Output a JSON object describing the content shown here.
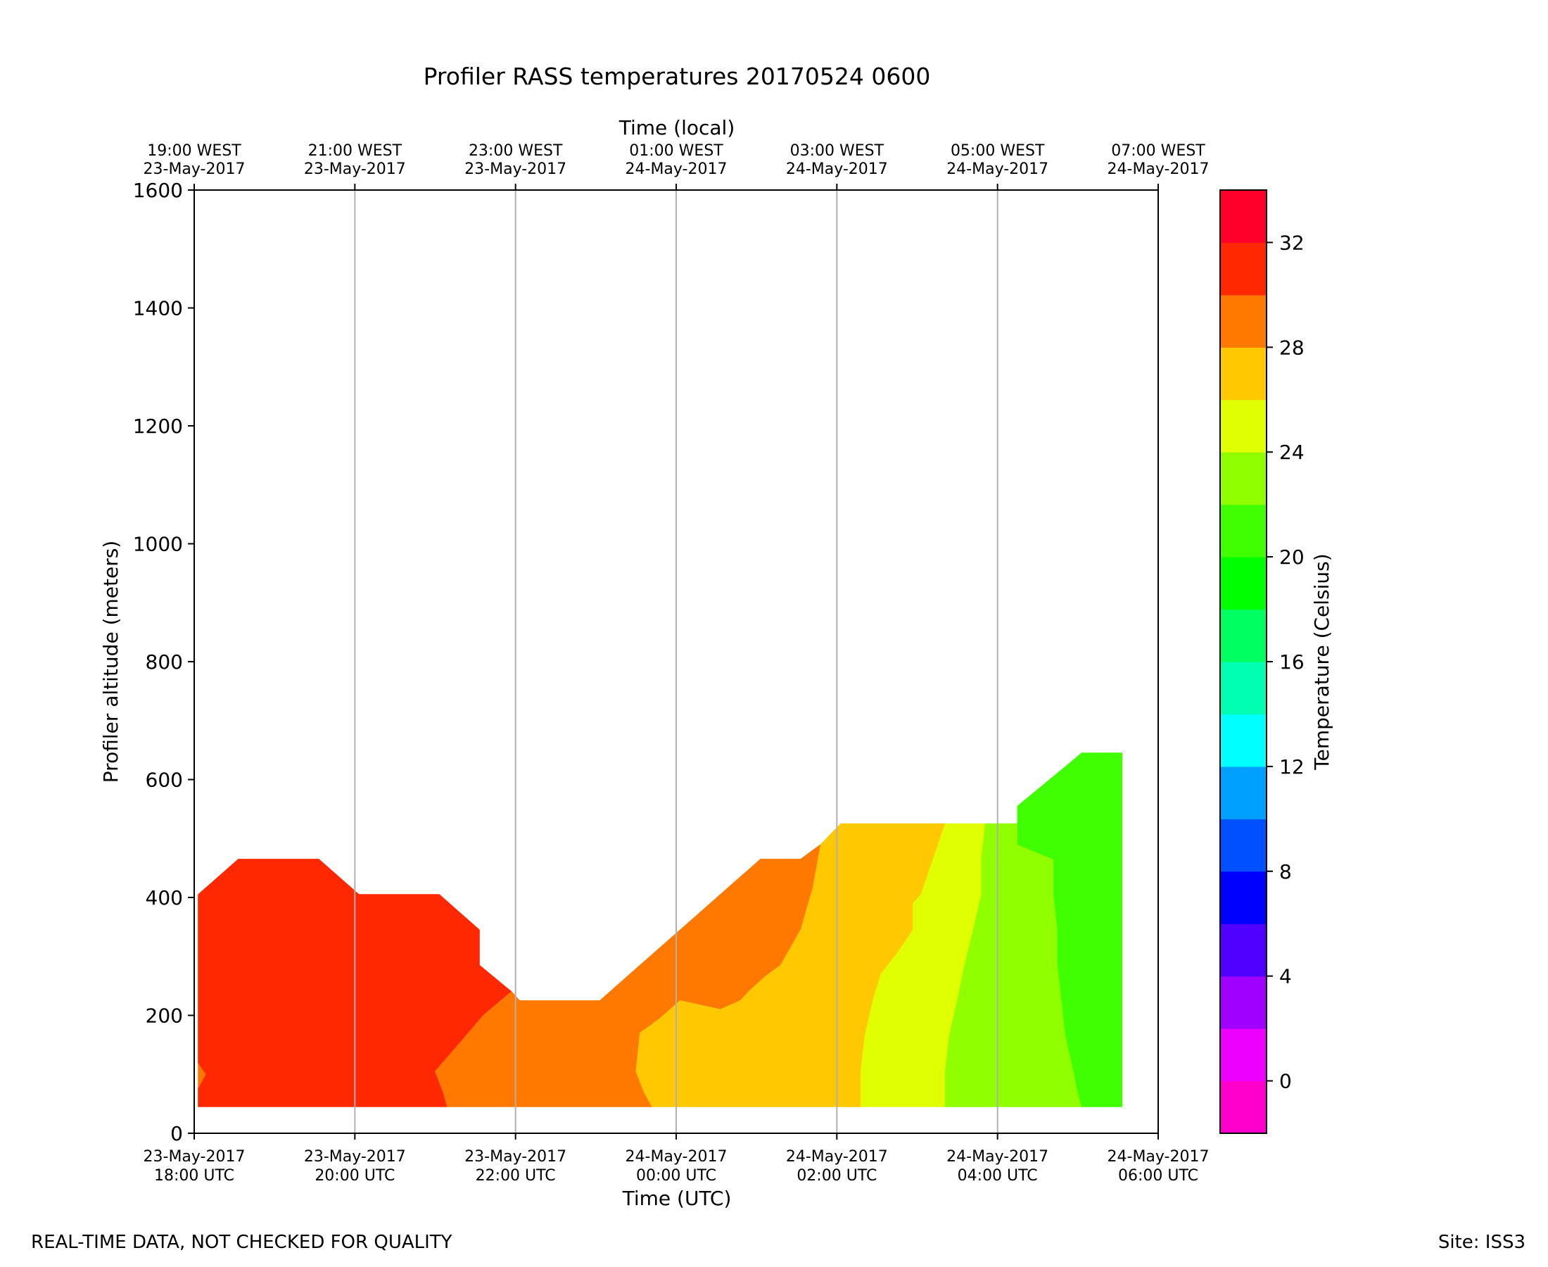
{
  "chart_data": {
    "type": "heatmap",
    "subtype": "filled-contour",
    "title": "Profiler RASS temperatures 20170524 0600",
    "xlabel": "Time (UTC)",
    "xlabel_top": "Time (local)",
    "ylabel": "Profiler altitude (meters)",
    "colorbar_label": "Temperature (Celsius)",
    "xlim_hours_utc_from_18z": [
      0,
      12
    ],
    "ylim": [
      0,
      1600
    ],
    "yticks": [
      0,
      200,
      400,
      600,
      800,
      1000,
      1200,
      1400,
      1600
    ],
    "xticks_hours": [
      0,
      2,
      4,
      6,
      8,
      10,
      12
    ],
    "xticks_bottom": [
      {
        "date": "23-May-2017",
        "time": "18:00 UTC"
      },
      {
        "date": "23-May-2017",
        "time": "20:00 UTC"
      },
      {
        "date": "23-May-2017",
        "time": "22:00 UTC"
      },
      {
        "date": "24-May-2017",
        "time": "00:00 UTC"
      },
      {
        "date": "24-May-2017",
        "time": "02:00 UTC"
      },
      {
        "date": "24-May-2017",
        "time": "04:00 UTC"
      },
      {
        "date": "24-May-2017",
        "time": "06:00 UTC"
      }
    ],
    "xticks_top": [
      {
        "time": "19:00 WEST",
        "date": "23-May-2017"
      },
      {
        "time": "21:00 WEST",
        "date": "23-May-2017"
      },
      {
        "time": "23:00 WEST",
        "date": "23-May-2017"
      },
      {
        "time": "01:00 WEST",
        "date": "24-May-2017"
      },
      {
        "time": "03:00 WEST",
        "date": "24-May-2017"
      },
      {
        "time": "05:00 WEST",
        "date": "24-May-2017"
      },
      {
        "time": "07:00 WEST",
        "date": "24-May-2017"
      }
    ],
    "grid": "vertical lines at x ticks",
    "colorbar": {
      "range": [
        -2,
        34
      ],
      "step": 2,
      "ticks": [
        0,
        4,
        8,
        12,
        16,
        20,
        24,
        28,
        32
      ],
      "colors": [
        "#ff00cc",
        "#ee00ff",
        "#a000ff",
        "#5000ff",
        "#0000ff",
        "#0050ff",
        "#00a0ff",
        "#00ffff",
        "#00ffb0",
        "#00ff60",
        "#00ff00",
        "#40ff00",
        "#90ff00",
        "#e0ff00",
        "#ffc800",
        "#ff7800",
        "#ff2800",
        "#ff0028"
      ]
    },
    "regions": [
      {
        "temp_band": [
          28,
          30
        ],
        "color": "#ff7800",
        "outline": [
          [
            0.05,
            120
          ],
          [
            0.15,
            100
          ],
          [
            0.05,
            75
          ]
        ]
      },
      {
        "temp_band": [
          30,
          32
        ],
        "color": "#ff2800",
        "outline": [
          [
            0.05,
            45
          ],
          [
            0.05,
            75
          ],
          [
            0.15,
            100
          ],
          [
            0.05,
            120
          ],
          [
            0.05,
            405
          ],
          [
            0.55,
            465
          ],
          [
            1.55,
            465
          ],
          [
            2.05,
            405
          ],
          [
            3.05,
            405
          ],
          [
            3.55,
            345
          ],
          [
            3.55,
            285
          ],
          [
            3.95,
            240
          ],
          [
            3.6,
            200
          ],
          [
            3.35,
            160
          ],
          [
            3.0,
            105
          ],
          [
            3.1,
            70
          ],
          [
            3.15,
            45
          ]
        ]
      },
      {
        "temp_band": [
          28,
          30
        ],
        "color": "#ff7800",
        "outline": [
          [
            3.15,
            45
          ],
          [
            3.1,
            70
          ],
          [
            3.0,
            105
          ],
          [
            3.35,
            160
          ],
          [
            3.6,
            200
          ],
          [
            3.95,
            240
          ],
          [
            4.05,
            225
          ],
          [
            5.05,
            225
          ],
          [
            5.55,
            285
          ],
          [
            6.05,
            345
          ],
          [
            6.55,
            405
          ],
          [
            7.05,
            465
          ],
          [
            7.55,
            465
          ],
          [
            7.8,
            490
          ],
          [
            7.7,
            415
          ],
          [
            7.55,
            345
          ],
          [
            7.3,
            285
          ],
          [
            7.1,
            265
          ],
          [
            6.9,
            240
          ],
          [
            6.8,
            225
          ],
          [
            6.55,
            210
          ],
          [
            6.05,
            225
          ],
          [
            5.8,
            195
          ],
          [
            5.55,
            170
          ],
          [
            5.5,
            105
          ],
          [
            5.6,
            70
          ],
          [
            5.7,
            45
          ]
        ]
      },
      {
        "temp_band": [
          26,
          28
        ],
        "color": "#ffc800",
        "outline": [
          [
            5.7,
            45
          ],
          [
            5.6,
            70
          ],
          [
            5.5,
            105
          ],
          [
            5.55,
            170
          ],
          [
            5.8,
            195
          ],
          [
            6.05,
            225
          ],
          [
            6.55,
            210
          ],
          [
            6.8,
            225
          ],
          [
            6.9,
            240
          ],
          [
            7.1,
            265
          ],
          [
            7.3,
            285
          ],
          [
            7.55,
            345
          ],
          [
            7.7,
            415
          ],
          [
            7.8,
            490
          ],
          [
            8.05,
            525
          ],
          [
            9.35,
            525
          ],
          [
            9.2,
            465
          ],
          [
            9.05,
            405
          ],
          [
            8.95,
            390
          ],
          [
            8.95,
            345
          ],
          [
            8.75,
            305
          ],
          [
            8.55,
            270
          ],
          [
            8.45,
            225
          ],
          [
            8.35,
            165
          ],
          [
            8.3,
            105
          ],
          [
            8.3,
            45
          ]
        ]
      },
      {
        "temp_band": [
          24,
          26
        ],
        "color": "#e0ff00",
        "outline": [
          [
            8.3,
            45
          ],
          [
            8.3,
            105
          ],
          [
            8.35,
            165
          ],
          [
            8.45,
            225
          ],
          [
            8.55,
            270
          ],
          [
            8.75,
            305
          ],
          [
            8.95,
            345
          ],
          [
            8.95,
            390
          ],
          [
            9.05,
            405
          ],
          [
            9.2,
            465
          ],
          [
            9.35,
            525
          ],
          [
            9.85,
            525
          ],
          [
            9.8,
            465
          ],
          [
            9.8,
            405
          ],
          [
            9.7,
            345
          ],
          [
            9.6,
            290
          ],
          [
            9.5,
            225
          ],
          [
            9.4,
            165
          ],
          [
            9.35,
            105
          ],
          [
            9.35,
            45
          ]
        ]
      },
      {
        "temp_band": [
          22,
          24
        ],
        "color": "#90ff00",
        "outline": [
          [
            9.35,
            45
          ],
          [
            9.35,
            105
          ],
          [
            9.4,
            165
          ],
          [
            9.5,
            225
          ],
          [
            9.6,
            290
          ],
          [
            9.7,
            345
          ],
          [
            9.8,
            405
          ],
          [
            9.8,
            465
          ],
          [
            9.85,
            525
          ],
          [
            10.05,
            525
          ],
          [
            10.25,
            525
          ],
          [
            10.25,
            555
          ],
          [
            10.25,
            490
          ],
          [
            10.7,
            465
          ],
          [
            10.7,
            405
          ],
          [
            10.75,
            345
          ],
          [
            10.75,
            285
          ],
          [
            10.8,
            225
          ],
          [
            10.85,
            165
          ],
          [
            10.95,
            105
          ],
          [
            11.0,
            70
          ],
          [
            11.05,
            45
          ]
        ]
      },
      {
        "temp_band": [
          20,
          22
        ],
        "color": "#40ff00",
        "outline": [
          [
            11.05,
            45
          ],
          [
            11.0,
            70
          ],
          [
            10.95,
            105
          ],
          [
            10.85,
            165
          ],
          [
            10.8,
            225
          ],
          [
            10.75,
            285
          ],
          [
            10.75,
            345
          ],
          [
            10.7,
            405
          ],
          [
            10.7,
            465
          ],
          [
            10.25,
            490
          ],
          [
            10.25,
            555
          ],
          [
            11.05,
            645
          ],
          [
            11.55,
            645
          ],
          [
            11.55,
            45
          ]
        ]
      }
    ]
  },
  "footer": {
    "left": "REAL-TIME DATA, NOT CHECKED FOR QUALITY",
    "right": "Site: ISS3"
  }
}
